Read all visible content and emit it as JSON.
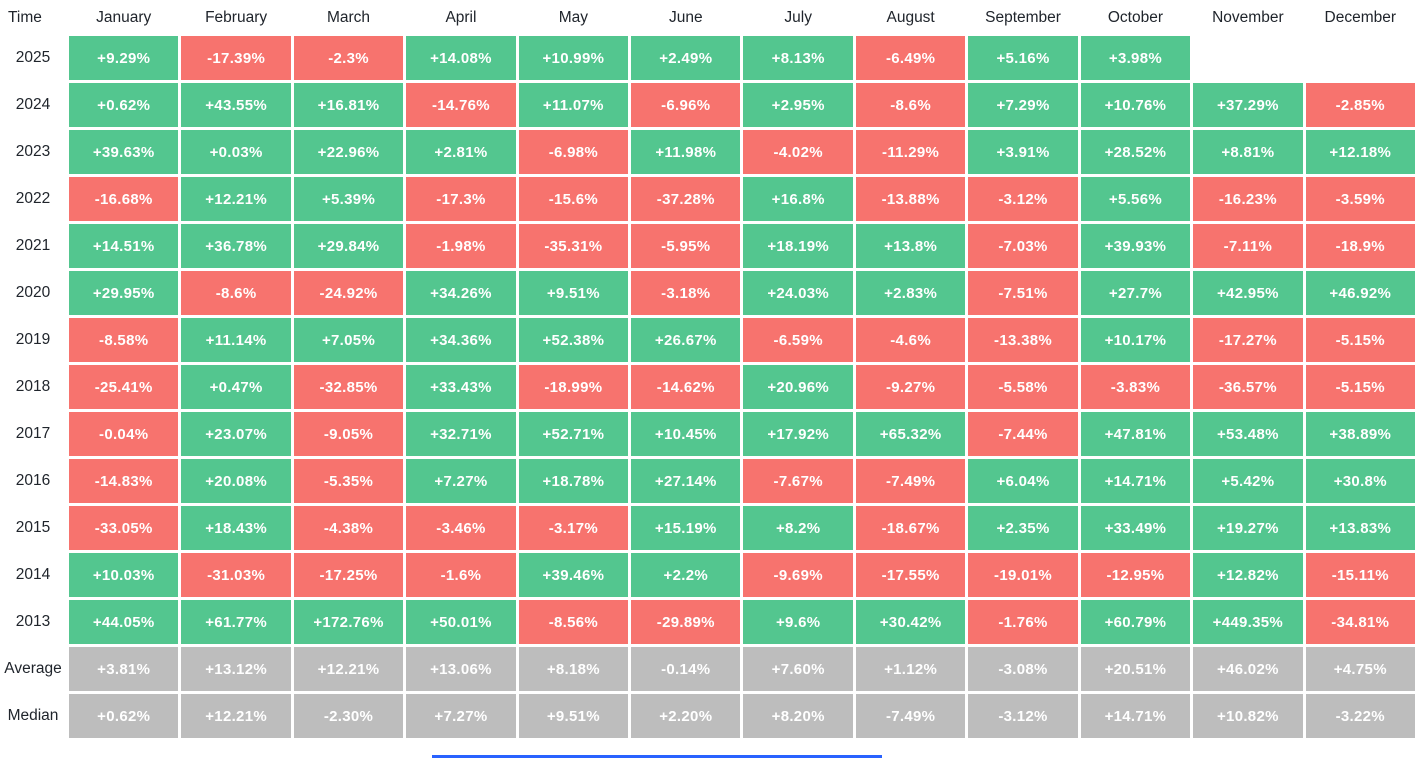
{
  "table": {
    "corner_label": "Time",
    "months": [
      "January",
      "February",
      "March",
      "April",
      "May",
      "June",
      "July",
      "August",
      "September",
      "October",
      "November",
      "December"
    ],
    "rows": [
      {
        "label": "2025",
        "type": "year",
        "values": [
          "+9.29%",
          "-17.39%",
          "-2.3%",
          "+14.08%",
          "+10.99%",
          "+2.49%",
          "+8.13%",
          "-6.49%",
          "+5.16%",
          "+3.98%",
          "",
          ""
        ]
      },
      {
        "label": "2024",
        "type": "year",
        "values": [
          "+0.62%",
          "+43.55%",
          "+16.81%",
          "-14.76%",
          "+11.07%",
          "-6.96%",
          "+2.95%",
          "-8.6%",
          "+7.29%",
          "+10.76%",
          "+37.29%",
          "-2.85%"
        ]
      },
      {
        "label": "2023",
        "type": "year",
        "values": [
          "+39.63%",
          "+0.03%",
          "+22.96%",
          "+2.81%",
          "-6.98%",
          "+11.98%",
          "-4.02%",
          "-11.29%",
          "+3.91%",
          "+28.52%",
          "+8.81%",
          "+12.18%"
        ]
      },
      {
        "label": "2022",
        "type": "year",
        "values": [
          "-16.68%",
          "+12.21%",
          "+5.39%",
          "-17.3%",
          "-15.6%",
          "-37.28%",
          "+16.8%",
          "-13.88%",
          "-3.12%",
          "+5.56%",
          "-16.23%",
          "-3.59%"
        ]
      },
      {
        "label": "2021",
        "type": "year",
        "values": [
          "+14.51%",
          "+36.78%",
          "+29.84%",
          "-1.98%",
          "-35.31%",
          "-5.95%",
          "+18.19%",
          "+13.8%",
          "-7.03%",
          "+39.93%",
          "-7.11%",
          "-18.9%"
        ]
      },
      {
        "label": "2020",
        "type": "year",
        "values": [
          "+29.95%",
          "-8.6%",
          "-24.92%",
          "+34.26%",
          "+9.51%",
          "-3.18%",
          "+24.03%",
          "+2.83%",
          "-7.51%",
          "+27.7%",
          "+42.95%",
          "+46.92%"
        ]
      },
      {
        "label": "2019",
        "type": "year",
        "values": [
          "-8.58%",
          "+11.14%",
          "+7.05%",
          "+34.36%",
          "+52.38%",
          "+26.67%",
          "-6.59%",
          "-4.6%",
          "-13.38%",
          "+10.17%",
          "-17.27%",
          "-5.15%"
        ]
      },
      {
        "label": "2018",
        "type": "year",
        "values": [
          "-25.41%",
          "+0.47%",
          "-32.85%",
          "+33.43%",
          "-18.99%",
          "-14.62%",
          "+20.96%",
          "-9.27%",
          "-5.58%",
          "-3.83%",
          "-36.57%",
          "-5.15%"
        ]
      },
      {
        "label": "2017",
        "type": "year",
        "values": [
          "-0.04%",
          "+23.07%",
          "-9.05%",
          "+32.71%",
          "+52.71%",
          "+10.45%",
          "+17.92%",
          "+65.32%",
          "-7.44%",
          "+47.81%",
          "+53.48%",
          "+38.89%"
        ]
      },
      {
        "label": "2016",
        "type": "year",
        "values": [
          "-14.83%",
          "+20.08%",
          "-5.35%",
          "+7.27%",
          "+18.78%",
          "+27.14%",
          "-7.67%",
          "-7.49%",
          "+6.04%",
          "+14.71%",
          "+5.42%",
          "+30.8%"
        ]
      },
      {
        "label": "2015",
        "type": "year",
        "values": [
          "-33.05%",
          "+18.43%",
          "-4.38%",
          "-3.46%",
          "-3.17%",
          "+15.19%",
          "+8.2%",
          "-18.67%",
          "+2.35%",
          "+33.49%",
          "+19.27%",
          "+13.83%"
        ]
      },
      {
        "label": "2014",
        "type": "year",
        "values": [
          "+10.03%",
          "-31.03%",
          "-17.25%",
          "-1.6%",
          "+39.46%",
          "+2.2%",
          "-9.69%",
          "-17.55%",
          "-19.01%",
          "-12.95%",
          "+12.82%",
          "-15.11%"
        ]
      },
      {
        "label": "2013",
        "type": "year",
        "values": [
          "+44.05%",
          "+61.77%",
          "+172.76%",
          "+50.01%",
          "-8.56%",
          "-29.89%",
          "+9.6%",
          "+30.42%",
          "-1.76%",
          "+60.79%",
          "+449.35%",
          "-34.81%"
        ]
      },
      {
        "label": "Average",
        "type": "summary",
        "values": [
          "+3.81%",
          "+13.12%",
          "+12.21%",
          "+13.06%",
          "+8.18%",
          "-0.14%",
          "+7.60%",
          "+1.12%",
          "-3.08%",
          "+20.51%",
          "+46.02%",
          "+4.75%"
        ]
      },
      {
        "label": "Median",
        "type": "summary",
        "values": [
          "+0.62%",
          "+12.21%",
          "-2.30%",
          "+7.27%",
          "+9.51%",
          "+2.20%",
          "+8.20%",
          "-7.49%",
          "-3.12%",
          "+14.71%",
          "+10.82%",
          "-3.22%"
        ]
      }
    ]
  },
  "colors": {
    "positive": "#53c68f",
    "negative": "#f7736e",
    "summary": "#bdbdbd",
    "header_text": "#20252c",
    "cell_text": "#ffffff",
    "accent_line": "#2962ff"
  },
  "chart_data": {
    "type": "heatmap",
    "title": "Monthly returns heatmap (%)",
    "columns": [
      "January",
      "February",
      "March",
      "April",
      "May",
      "June",
      "July",
      "August",
      "September",
      "October",
      "November",
      "December"
    ],
    "row_labels": [
      "2025",
      "2024",
      "2023",
      "2022",
      "2021",
      "2020",
      "2019",
      "2018",
      "2017",
      "2016",
      "2015",
      "2014",
      "2013",
      "Average",
      "Median"
    ],
    "values": [
      [
        9.29,
        -17.39,
        -2.3,
        14.08,
        10.99,
        2.49,
        8.13,
        -6.49,
        5.16,
        3.98,
        null,
        null
      ],
      [
        0.62,
        43.55,
        16.81,
        -14.76,
        11.07,
        -6.96,
        2.95,
        -8.6,
        7.29,
        10.76,
        37.29,
        -2.85
      ],
      [
        39.63,
        0.03,
        22.96,
        2.81,
        -6.98,
        11.98,
        -4.02,
        -11.29,
        3.91,
        28.52,
        8.81,
        12.18
      ],
      [
        -16.68,
        12.21,
        5.39,
        -17.3,
        -15.6,
        -37.28,
        16.8,
        -13.88,
        -3.12,
        5.56,
        -16.23,
        -3.59
      ],
      [
        14.51,
        36.78,
        29.84,
        -1.98,
        -35.31,
        -5.95,
        18.19,
        13.8,
        -7.03,
        39.93,
        -7.11,
        -18.9
      ],
      [
        29.95,
        -8.6,
        -24.92,
        34.26,
        9.51,
        -3.18,
        24.03,
        2.83,
        -7.51,
        27.7,
        42.95,
        46.92
      ],
      [
        -8.58,
        11.14,
        7.05,
        34.36,
        52.38,
        26.67,
        -6.59,
        -4.6,
        -13.38,
        10.17,
        -17.27,
        -5.15
      ],
      [
        -25.41,
        0.47,
        -32.85,
        33.43,
        -18.99,
        -14.62,
        20.96,
        -9.27,
        -5.58,
        -3.83,
        -36.57,
        -5.15
      ],
      [
        -0.04,
        23.07,
        -9.05,
        32.71,
        52.71,
        10.45,
        17.92,
        65.32,
        -7.44,
        47.81,
        53.48,
        38.89
      ],
      [
        -14.83,
        20.08,
        -5.35,
        7.27,
        18.78,
        27.14,
        -7.67,
        -7.49,
        6.04,
        14.71,
        5.42,
        30.8
      ],
      [
        -33.05,
        18.43,
        -4.38,
        -3.46,
        -3.17,
        15.19,
        8.2,
        -18.67,
        2.35,
        33.49,
        19.27,
        13.83
      ],
      [
        10.03,
        -31.03,
        -17.25,
        -1.6,
        39.46,
        2.2,
        -9.69,
        -17.55,
        -19.01,
        -12.95,
        12.82,
        -15.11
      ],
      [
        44.05,
        61.77,
        172.76,
        50.01,
        -8.56,
        -29.89,
        9.6,
        30.42,
        -1.76,
        60.79,
        449.35,
        -34.81
      ],
      [
        3.81,
        13.12,
        12.21,
        13.06,
        8.18,
        -0.14,
        7.6,
        1.12,
        -3.08,
        20.51,
        46.02,
        4.75
      ],
      [
        0.62,
        12.21,
        -2.3,
        7.27,
        9.51,
        2.2,
        8.2,
        -7.49,
        -3.12,
        14.71,
        10.82,
        -3.22
      ]
    ],
    "color_coding": "green = positive monthly return, red = negative monthly return, gray = Average/Median summary rows",
    "legend": "none",
    "grid": "white 3px gaps between cells"
  }
}
